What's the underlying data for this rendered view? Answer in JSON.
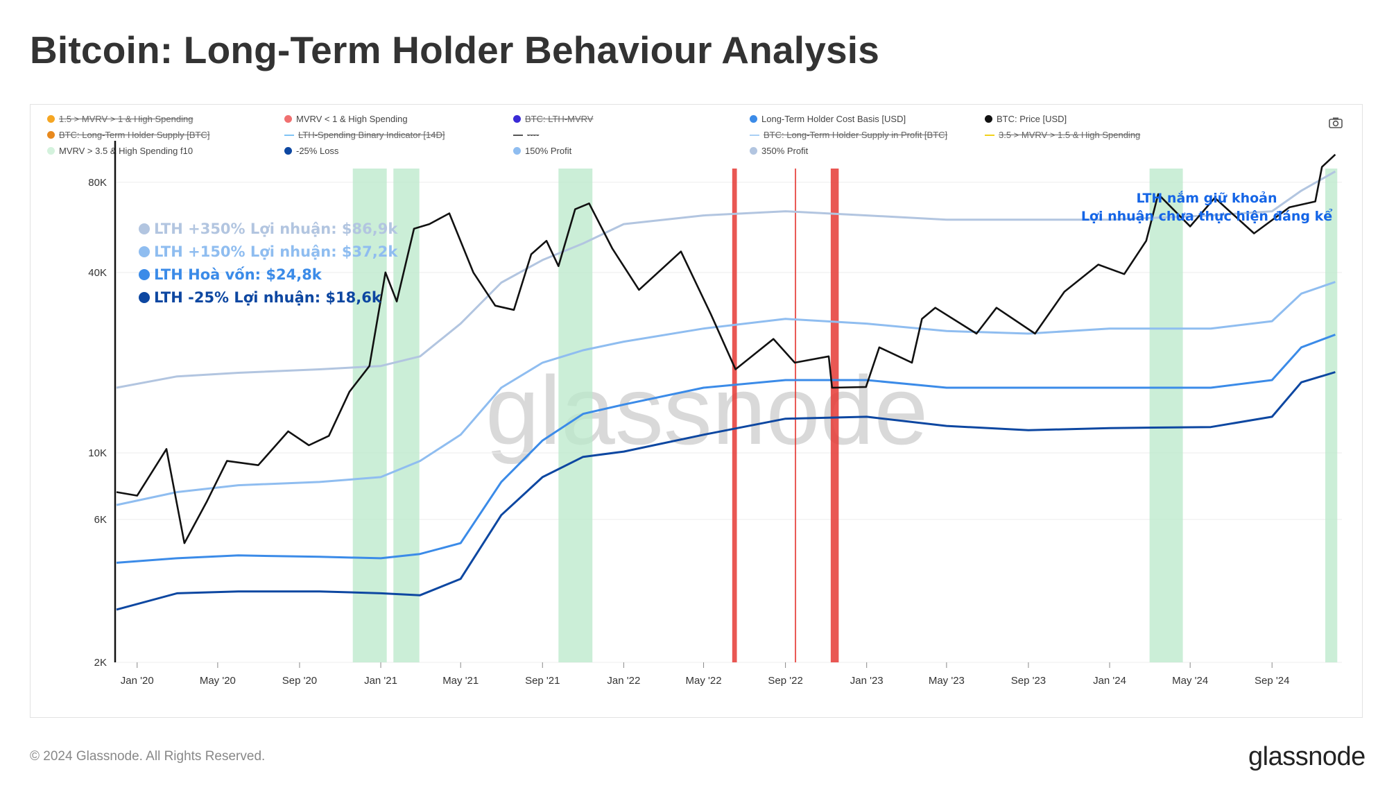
{
  "title": "Bitcoin: Long-Term Holder Behaviour Analysis",
  "footer": {
    "copyright": "© 2024 Glassnode. All Rights Reserved.",
    "logo": "glassnode"
  },
  "camera_icon": "camera-icon",
  "legend": [
    {
      "label": "1.5 > MVRV > 1 & High Spending",
      "color": "#f5a623",
      "active": false,
      "shape": "dot"
    },
    {
      "label": "MVRV < 1 & High Spending",
      "color": "#f07070",
      "active": true,
      "shape": "dot"
    },
    {
      "label": "BTC: LTH-MVRV",
      "color": "#3a2ad6",
      "active": false,
      "shape": "dot"
    },
    {
      "label": "Long-Term Holder Cost Basis [USD]",
      "color": "#3b8be8",
      "active": true,
      "shape": "dot"
    },
    {
      "label": "BTC: Price [USD]",
      "color": "#111111",
      "active": true,
      "shape": "dot"
    },
    {
      "label": "BTC: Long-Term Holder Supply [BTC]",
      "color": "#e8891e",
      "active": false,
      "shape": "dot"
    },
    {
      "label": "LTH-Spending Binary Indicator [14D]",
      "color": "#7fc3f5",
      "active": false,
      "shape": "line"
    },
    {
      "label": "----",
      "color": "#555555",
      "active": false,
      "shape": "line"
    },
    {
      "label": "BTC: Long-Term Holder Supply in Profit [BTC]",
      "color": "#a9d0f5",
      "active": false,
      "shape": "line"
    },
    {
      "label": "3.5 > MVRV > 1.5 & High Spending",
      "color": "#f2d21b",
      "active": false,
      "shape": "line"
    },
    {
      "label": "MVRV > 3.5 & High Spending f10",
      "color": "#d4f2dd",
      "active": true,
      "shape": "dot"
    },
    {
      "label": "-25% Loss",
      "color": "#0d47a1",
      "active": true,
      "shape": "dot"
    },
    {
      "label": "150% Profit",
      "color": "#8fbdf0",
      "active": true,
      "shape": "dot"
    },
    {
      "label": "350% Profit",
      "color": "#b2c5e0",
      "active": true,
      "shape": "dot"
    }
  ],
  "annotations": [
    {
      "label": "LTH +350% Lợi nhuận: $86,9k",
      "color": "#b2c5e0"
    },
    {
      "label": "LTH +150% Lợi nhuận: $37,2k",
      "color": "#8fbdf0"
    },
    {
      "label": "LTH Hoà vốn: $24,8k",
      "color": "#3b8be8"
    },
    {
      "label": "LTH -25% Lợi nhuận: $18,6k",
      "color": "#0d47a1"
    }
  ],
  "note": {
    "line1": "LTH nắm giữ khoản",
    "line2": "Lợi nhuận chưa thực hiện đáng kể"
  },
  "watermark": "glassnode",
  "chart_data": {
    "type": "line",
    "title": "Bitcoin: Long-Term Holder Behaviour Analysis",
    "y_scale": "log",
    "ylim": [
      2000,
      110000
    ],
    "xlim": [
      "2019-12-01",
      "2024-12-15"
    ],
    "y_ticks": [
      {
        "value": 2000,
        "label": "2K"
      },
      {
        "value": 6000,
        "label": "6K"
      },
      {
        "value": 10000,
        "label": "10K"
      },
      {
        "value": 40000,
        "label": "40K"
      },
      {
        "value": 80000,
        "label": "80K"
      }
    ],
    "x_ticks": [
      {
        "date": "2020-01-01",
        "label": "Jan '20"
      },
      {
        "date": "2020-05-01",
        "label": "May '20"
      },
      {
        "date": "2020-09-01",
        "label": "Sep '20"
      },
      {
        "date": "2021-01-01",
        "label": "Jan '21"
      },
      {
        "date": "2021-05-01",
        "label": "May '21"
      },
      {
        "date": "2021-09-01",
        "label": "Sep '21"
      },
      {
        "date": "2022-01-01",
        "label": "Jan '22"
      },
      {
        "date": "2022-05-01",
        "label": "May '22"
      },
      {
        "date": "2022-09-01",
        "label": "Sep '22"
      },
      {
        "date": "2023-01-01",
        "label": "Jan '23"
      },
      {
        "date": "2023-05-01",
        "label": "May '23"
      },
      {
        "date": "2023-09-01",
        "label": "Sep '23"
      },
      {
        "date": "2024-01-01",
        "label": "Jan '24"
      },
      {
        "date": "2024-05-01",
        "label": "May '24"
      },
      {
        "date": "2024-09-01",
        "label": "Sep '24"
      }
    ],
    "series": [
      {
        "name": "BTC: Price [USD]",
        "color": "#111111",
        "points": [
          [
            "2019-12-01",
            7400
          ],
          [
            "2020-01-01",
            7200
          ],
          [
            "2020-02-14",
            10300
          ],
          [
            "2020-03-12",
            5000
          ],
          [
            "2020-04-15",
            6900
          ],
          [
            "2020-05-15",
            9400
          ],
          [
            "2020-07-01",
            9100
          ],
          [
            "2020-08-15",
            11800
          ],
          [
            "2020-09-15",
            10600
          ],
          [
            "2020-10-15",
            11400
          ],
          [
            "2020-11-15",
            16000
          ],
          [
            "2020-12-15",
            19500
          ],
          [
            "2021-01-08",
            40000
          ],
          [
            "2021-01-25",
            32000
          ],
          [
            "2021-02-20",
            56000
          ],
          [
            "2021-03-15",
            58000
          ],
          [
            "2021-04-14",
            63000
          ],
          [
            "2021-05-20",
            40000
          ],
          [
            "2021-06-22",
            31000
          ],
          [
            "2021-07-20",
            30000
          ],
          [
            "2021-08-15",
            46000
          ],
          [
            "2021-09-07",
            51000
          ],
          [
            "2021-09-25",
            42000
          ],
          [
            "2021-10-20",
            65000
          ],
          [
            "2021-11-10",
            68000
          ],
          [
            "2021-12-15",
            48000
          ],
          [
            "2022-01-24",
            35000
          ],
          [
            "2022-03-28",
            47000
          ],
          [
            "2022-05-12",
            29000
          ],
          [
            "2022-06-18",
            19000
          ],
          [
            "2022-08-14",
            24000
          ],
          [
            "2022-09-15",
            20000
          ],
          [
            "2022-11-05",
            21000
          ],
          [
            "2022-11-10",
            16500
          ],
          [
            "2022-12-31",
            16600
          ],
          [
            "2023-01-20",
            22500
          ],
          [
            "2023-03-10",
            20000
          ],
          [
            "2023-03-25",
            28000
          ],
          [
            "2023-04-14",
            30500
          ],
          [
            "2023-06-15",
            25000
          ],
          [
            "2023-07-15",
            30500
          ],
          [
            "2023-09-11",
            25000
          ],
          [
            "2023-10-25",
            34500
          ],
          [
            "2023-12-15",
            42500
          ],
          [
            "2024-01-23",
            39500
          ],
          [
            "2024-02-25",
            51000
          ],
          [
            "2024-03-14",
            73000
          ],
          [
            "2024-05-01",
            57000
          ],
          [
            "2024-06-07",
            71000
          ],
          [
            "2024-08-05",
            54000
          ],
          [
            "2024-09-27",
            66000
          ],
          [
            "2024-11-05",
            69000
          ],
          [
            "2024-11-15",
            90000
          ],
          [
            "2024-12-05",
            99000
          ]
        ]
      },
      {
        "name": "350% Profit",
        "color": "#b2c5e0",
        "points": [
          [
            "2019-12-01",
            16500
          ],
          [
            "2020-03-01",
            18000
          ],
          [
            "2020-06-01",
            18500
          ],
          [
            "2020-10-01",
            19000
          ],
          [
            "2021-01-01",
            19500
          ],
          [
            "2021-03-01",
            21000
          ],
          [
            "2021-05-01",
            27000
          ],
          [
            "2021-07-01",
            37000
          ],
          [
            "2021-09-01",
            44000
          ],
          [
            "2021-11-01",
            50000
          ],
          [
            "2022-01-01",
            58000
          ],
          [
            "2022-05-01",
            62000
          ],
          [
            "2022-09-01",
            64000
          ],
          [
            "2023-01-01",
            62000
          ],
          [
            "2023-05-01",
            60000
          ],
          [
            "2023-09-01",
            60000
          ],
          [
            "2024-01-01",
            60000
          ],
          [
            "2024-06-01",
            62000
          ],
          [
            "2024-09-01",
            64000
          ],
          [
            "2024-10-15",
            75000
          ],
          [
            "2024-12-05",
            86900
          ]
        ]
      },
      {
        "name": "150% Profit",
        "color": "#8fbdf0",
        "points": [
          [
            "2019-12-01",
            6700
          ],
          [
            "2020-03-01",
            7400
          ],
          [
            "2020-06-01",
            7800
          ],
          [
            "2020-10-01",
            8000
          ],
          [
            "2021-01-01",
            8300
          ],
          [
            "2021-03-01",
            9400
          ],
          [
            "2021-05-01",
            11500
          ],
          [
            "2021-07-01",
            16500
          ],
          [
            "2021-09-01",
            20000
          ],
          [
            "2021-11-01",
            22000
          ],
          [
            "2022-01-01",
            23500
          ],
          [
            "2022-05-01",
            26000
          ],
          [
            "2022-09-01",
            28000
          ],
          [
            "2023-01-01",
            27000
          ],
          [
            "2023-05-01",
            25500
          ],
          [
            "2023-09-01",
            25000
          ],
          [
            "2024-01-01",
            26000
          ],
          [
            "2024-06-01",
            26000
          ],
          [
            "2024-09-01",
            27500
          ],
          [
            "2024-10-15",
            34000
          ],
          [
            "2024-12-05",
            37200
          ]
        ]
      },
      {
        "name": "Long-Term Holder Cost Basis [USD]",
        "color": "#3b8be8",
        "points": [
          [
            "2019-12-01",
            4300
          ],
          [
            "2020-03-01",
            4450
          ],
          [
            "2020-06-01",
            4550
          ],
          [
            "2020-10-01",
            4500
          ],
          [
            "2021-01-01",
            4450
          ],
          [
            "2021-03-01",
            4600
          ],
          [
            "2021-05-01",
            5000
          ],
          [
            "2021-07-01",
            8000
          ],
          [
            "2021-09-01",
            11000
          ],
          [
            "2021-11-01",
            13500
          ],
          [
            "2022-01-01",
            14500
          ],
          [
            "2022-05-01",
            16500
          ],
          [
            "2022-09-01",
            17500
          ],
          [
            "2023-01-01",
            17500
          ],
          [
            "2023-05-01",
            16500
          ],
          [
            "2023-09-01",
            16500
          ],
          [
            "2024-01-01",
            16500
          ],
          [
            "2024-06-01",
            16500
          ],
          [
            "2024-09-01",
            17500
          ],
          [
            "2024-10-15",
            22500
          ],
          [
            "2024-12-05",
            24800
          ]
        ]
      },
      {
        "name": "-25% Loss",
        "color": "#0d47a1",
        "points": [
          [
            "2019-12-01",
            3000
          ],
          [
            "2020-03-01",
            3400
          ],
          [
            "2020-06-01",
            3450
          ],
          [
            "2020-10-01",
            3450
          ],
          [
            "2021-01-01",
            3400
          ],
          [
            "2021-03-01",
            3350
          ],
          [
            "2021-05-01",
            3800
          ],
          [
            "2021-07-01",
            6200
          ],
          [
            "2021-09-01",
            8300
          ],
          [
            "2021-11-01",
            9700
          ],
          [
            "2022-01-01",
            10100
          ],
          [
            "2022-05-01",
            11500
          ],
          [
            "2022-09-01",
            13000
          ],
          [
            "2023-01-01",
            13200
          ],
          [
            "2023-05-01",
            12300
          ],
          [
            "2023-09-01",
            11900
          ],
          [
            "2024-01-01",
            12100
          ],
          [
            "2024-06-01",
            12200
          ],
          [
            "2024-09-01",
            13200
          ],
          [
            "2024-10-15",
            17200
          ],
          [
            "2024-12-05",
            18600
          ]
        ]
      }
    ],
    "bands": [
      {
        "name": "MVRV > 3.5 & High Spending f10",
        "color": "#b9e8c9",
        "ranges": [
          [
            "2020-11-20",
            "2021-01-10"
          ],
          [
            "2021-01-20",
            "2021-02-28"
          ],
          [
            "2021-09-25",
            "2021-11-15"
          ],
          [
            "2024-03-01",
            "2024-04-20"
          ],
          [
            "2024-11-20",
            "2024-12-08"
          ]
        ]
      },
      {
        "name": "MVRV < 1 & High Spending",
        "color": "#e53935",
        "ranges": [
          [
            "2022-06-13",
            "2022-06-20"
          ],
          [
            "2022-09-15",
            "2022-09-16"
          ],
          [
            "2022-11-08",
            "2022-11-20"
          ]
        ]
      }
    ]
  }
}
